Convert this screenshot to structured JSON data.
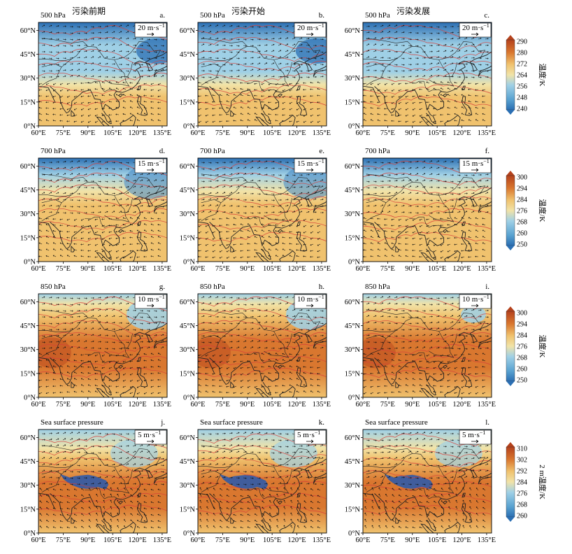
{
  "columns": [
    {
      "title": "污染前期",
      "panel_labels": [
        "a.",
        "d.",
        "g.",
        "j."
      ]
    },
    {
      "title": "污染开始",
      "panel_labels": [
        "b.",
        "e.",
        "h.",
        "k."
      ]
    },
    {
      "title": "污染发展",
      "panel_labels": [
        "c.",
        "f.",
        "i.",
        "l."
      ]
    }
  ],
  "rows": [
    {
      "level": "500 hPa",
      "ref_vector": "20 m·s",
      "ref_vector_exp": "−1",
      "colorbar": {
        "label": "温度/K",
        "ticks": [
          "290",
          "280",
          "272",
          "264",
          "256",
          "248",
          "240"
        ]
      }
    },
    {
      "level": "700 hPa",
      "ref_vector": "15 m·s",
      "ref_vector_exp": "−1",
      "colorbar": {
        "label": "温度/K",
        "ticks": [
          "300",
          "294",
          "284",
          "276",
          "268",
          "260",
          "250"
        ]
      }
    },
    {
      "level": "850 hPa",
      "ref_vector": "10 m·s",
      "ref_vector_exp": "−1",
      "colorbar": {
        "label": "温度/K",
        "ticks": [
          "300",
          "294",
          "284",
          "276",
          "268",
          "260",
          "250"
        ]
      }
    },
    {
      "level": "Sea surface pressure",
      "ref_vector": "5 m·s",
      "ref_vector_exp": "−1",
      "colorbar": {
        "label": "2 m温度/K",
        "ticks": [
          "310",
          "302",
          "292",
          "284",
          "276",
          "268",
          "260"
        ]
      }
    }
  ],
  "lat_ticks": [
    "60°N",
    "45°N",
    "30°N",
    "15°N",
    "0°N"
  ],
  "lon_ticks": [
    "60°E",
    "75°E",
    "90°E",
    "105°E",
    "120°E",
    "135°E"
  ],
  "colors": {
    "cold": "#2b6fb3",
    "cool": "#9fd0e6",
    "mild": "#f1e3a8",
    "warm": "#f0c26e",
    "hot": "#d9772f",
    "very_hot": "#b5421c",
    "contour_red": "#d8403a",
    "coast": "#222222"
  }
}
